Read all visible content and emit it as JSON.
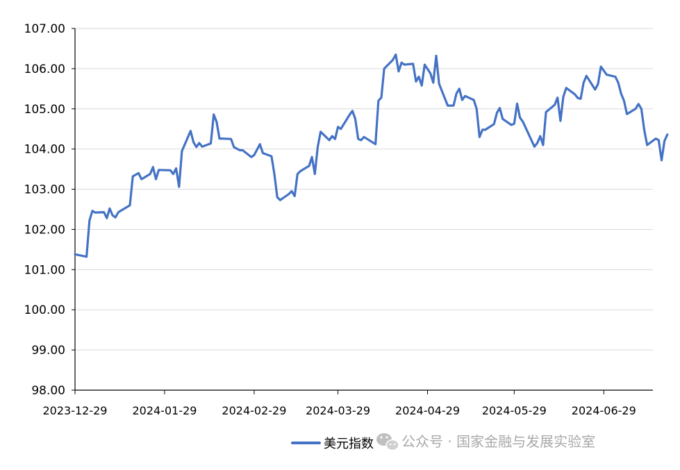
{
  "watermark": {
    "text": "公众号 · 国家金融与发展实验室",
    "icon": "wechat-icon"
  },
  "chart_data": {
    "type": "line",
    "title": "",
    "xlabel": "",
    "ylabel": "",
    "ylim": [
      98.0,
      107.0
    ],
    "y_ticks": [
      "98.00",
      "99.00",
      "100.00",
      "101.00",
      "102.00",
      "103.00",
      "104.00",
      "105.00",
      "106.00",
      "107.00"
    ],
    "x_ticks": [
      "2023-12-29",
      "2024-01-29",
      "2024-02-29",
      "2024-03-29",
      "2024-04-29",
      "2024-05-29",
      "2024-06-29"
    ],
    "x_range": [
      "2023-12-29",
      "2024-07-16"
    ],
    "grid": "horizontal",
    "legend": "bottom",
    "series": [
      {
        "name": "美元指数",
        "color": "#4472C4",
        "points": [
          [
            "2023-12-29",
            101.38
          ],
          [
            "2024-01-02",
            101.32
          ],
          [
            "2024-01-03",
            102.22
          ],
          [
            "2024-01-04",
            102.46
          ],
          [
            "2024-01-05",
            102.42
          ],
          [
            "2024-01-08",
            102.43
          ],
          [
            "2024-01-09",
            102.28
          ],
          [
            "2024-01-10",
            102.52
          ],
          [
            "2024-01-11",
            102.35
          ],
          [
            "2024-01-12",
            102.3
          ],
          [
            "2024-01-13",
            102.43
          ],
          [
            "2024-01-17",
            102.6
          ],
          [
            "2024-01-18",
            103.32
          ],
          [
            "2024-01-20",
            103.4
          ],
          [
            "2024-01-21",
            103.25
          ],
          [
            "2024-01-24",
            103.38
          ],
          [
            "2024-01-25",
            103.55
          ],
          [
            "2024-01-26",
            103.25
          ],
          [
            "2024-01-27",
            103.48
          ],
          [
            "2024-01-31",
            103.47
          ],
          [
            "2024-02-01",
            103.38
          ],
          [
            "2024-02-02",
            103.52
          ],
          [
            "2024-02-03",
            103.06
          ],
          [
            "2024-02-04",
            103.95
          ],
          [
            "2024-02-07",
            104.45
          ],
          [
            "2024-02-08",
            104.17
          ],
          [
            "2024-02-09",
            104.05
          ],
          [
            "2024-02-10",
            104.15
          ],
          [
            "2024-02-11",
            104.06
          ],
          [
            "2024-02-14",
            104.14
          ],
          [
            "2024-02-15",
            104.86
          ],
          [
            "2024-02-16",
            104.68
          ],
          [
            "2024-02-17",
            104.26
          ],
          [
            "2024-02-18",
            104.26
          ],
          [
            "2024-02-21",
            104.25
          ],
          [
            "2024-02-22",
            104.05
          ],
          [
            "2024-02-24",
            103.97
          ],
          [
            "2024-02-25",
            103.97
          ],
          [
            "2024-02-28",
            103.8
          ],
          [
            "2024-02-29",
            103.85
          ],
          [
            "2024-03-02",
            104.12
          ],
          [
            "2024-03-03",
            103.9
          ],
          [
            "2024-03-06",
            103.82
          ],
          [
            "2024-03-07",
            103.38
          ],
          [
            "2024-03-08",
            102.8
          ],
          [
            "2024-03-09",
            102.73
          ],
          [
            "2024-03-12",
            102.88
          ],
          [
            "2024-03-13",
            102.95
          ],
          [
            "2024-03-14",
            102.83
          ],
          [
            "2024-03-15",
            103.38
          ],
          [
            "2024-03-16",
            103.45
          ],
          [
            "2024-03-19",
            103.58
          ],
          [
            "2024-03-20",
            103.8
          ],
          [
            "2024-03-21",
            103.38
          ],
          [
            "2024-03-22",
            104.05
          ],
          [
            "2024-03-23",
            104.43
          ],
          [
            "2024-03-26",
            104.22
          ],
          [
            "2024-03-27",
            104.32
          ],
          [
            "2024-03-28",
            104.25
          ],
          [
            "2024-03-29",
            104.55
          ],
          [
            "2024-03-30",
            104.5
          ],
          [
            "2024-04-02",
            104.85
          ],
          [
            "2024-04-03",
            104.95
          ],
          [
            "2024-04-04",
            104.75
          ],
          [
            "2024-04-05",
            104.25
          ],
          [
            "2024-04-06",
            104.22
          ],
          [
            "2024-04-07",
            104.3
          ],
          [
            "2024-04-11",
            104.12
          ],
          [
            "2024-04-12",
            105.2
          ],
          [
            "2024-04-13",
            105.28
          ],
          [
            "2024-04-14",
            106.0
          ],
          [
            "2024-04-17",
            106.22
          ],
          [
            "2024-04-18",
            106.35
          ],
          [
            "2024-04-19",
            105.93
          ],
          [
            "2024-04-20",
            106.15
          ],
          [
            "2024-04-21",
            106.1
          ],
          [
            "2024-04-24",
            106.12
          ],
          [
            "2024-04-25",
            105.68
          ],
          [
            "2024-04-26",
            105.8
          ],
          [
            "2024-04-27",
            105.58
          ],
          [
            "2024-04-28",
            106.1
          ],
          [
            "2024-04-30",
            105.88
          ],
          [
            "2024-05-01",
            105.65
          ],
          [
            "2024-05-02",
            106.32
          ],
          [
            "2024-05-03",
            105.62
          ],
          [
            "2024-05-06",
            105.08
          ],
          [
            "2024-05-07",
            105.08
          ],
          [
            "2024-05-08",
            105.08
          ],
          [
            "2024-05-09",
            105.38
          ],
          [
            "2024-05-10",
            105.5
          ],
          [
            "2024-05-11",
            105.22
          ],
          [
            "2024-05-12",
            105.32
          ],
          [
            "2024-05-15",
            105.22
          ],
          [
            "2024-05-16",
            105.0
          ],
          [
            "2024-05-17",
            104.3
          ],
          [
            "2024-05-18",
            104.48
          ],
          [
            "2024-05-19",
            104.48
          ],
          [
            "2024-05-22",
            104.62
          ],
          [
            "2024-05-23",
            104.9
          ],
          [
            "2024-05-24",
            105.02
          ],
          [
            "2024-05-25",
            104.75
          ],
          [
            "2024-05-28",
            104.6
          ],
          [
            "2024-05-29",
            104.63
          ],
          [
            "2024-05-30",
            105.13
          ],
          [
            "2024-05-31",
            104.78
          ],
          [
            "2024-06-01",
            104.68
          ],
          [
            "2024-06-05",
            104.06
          ],
          [
            "2024-06-06",
            104.15
          ],
          [
            "2024-06-07",
            104.32
          ],
          [
            "2024-06-08",
            104.1
          ],
          [
            "2024-06-09",
            104.92
          ],
          [
            "2024-06-12",
            105.1
          ],
          [
            "2024-06-13",
            105.28
          ],
          [
            "2024-06-14",
            104.7
          ],
          [
            "2024-06-15",
            105.3
          ],
          [
            "2024-06-16",
            105.52
          ],
          [
            "2024-06-19",
            105.36
          ],
          [
            "2024-06-20",
            105.27
          ],
          [
            "2024-06-21",
            105.25
          ],
          [
            "2024-06-22",
            105.65
          ],
          [
            "2024-06-23",
            105.82
          ],
          [
            "2024-06-26",
            105.48
          ],
          [
            "2024-06-27",
            105.62
          ],
          [
            "2024-06-28",
            106.05
          ],
          [
            "2024-06-29",
            105.95
          ],
          [
            "2024-06-30",
            105.85
          ],
          [
            "2024-07-03",
            105.8
          ],
          [
            "2024-07-04",
            105.65
          ],
          [
            "2024-07-05",
            105.38
          ],
          [
            "2024-07-06",
            105.2
          ],
          [
            "2024-07-07",
            104.87
          ],
          [
            "2024-07-10",
            105.0
          ],
          [
            "2024-07-11",
            105.12
          ],
          [
            "2024-07-12",
            105.0
          ],
          [
            "2024-07-13",
            104.48
          ],
          [
            "2024-07-14",
            104.1
          ],
          [
            "2024-07-17",
            104.26
          ],
          [
            "2024-07-18",
            104.22
          ],
          [
            "2024-07-19",
            103.72
          ],
          [
            "2024-07-20",
            104.2
          ],
          [
            "2024-07-21",
            104.36
          ]
        ]
      }
    ]
  }
}
